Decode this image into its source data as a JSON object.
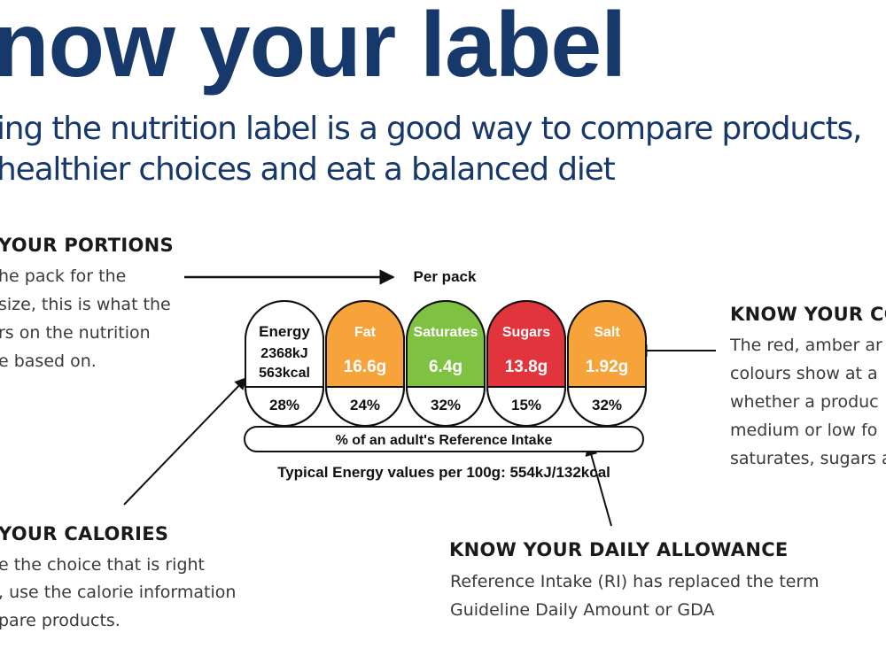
{
  "title": "now your label",
  "subtitle_lines": [
    "ing the nutrition label is a good way to compare products,",
    "healthier choices and eat a balanced diet"
  ],
  "portions": {
    "heading": "YOUR PORTIONS",
    "lines": [
      "he pack for the",
      " size, this is what the",
      "rs on the nutrition",
      "e based on."
    ]
  },
  "calories": {
    "heading": "YOUR CALORIES",
    "lines": [
      "e the choice that is right",
      ", use the calorie information",
      "pare products."
    ]
  },
  "colours": {
    "heading": "KNOW YOUR CO",
    "lines": [
      "The red, amber ar",
      "colours show at a",
      "whether a produc",
      "medium or low fo",
      "saturates, sugars a"
    ]
  },
  "allowance": {
    "heading": "KNOW YOUR DAILY ALLOWANCE",
    "lines": [
      "Reference Intake (RI) has replaced the term",
      "Guideline Daily Amount or GDA"
    ]
  },
  "label": {
    "per_pack": "Per pack",
    "cells": [
      {
        "name": "Energy",
        "lines": [
          "2368kJ",
          "563kcal"
        ],
        "percent": "28%",
        "color": "#ffffff"
      },
      {
        "name": "Fat",
        "lines": [
          "16.6g"
        ],
        "percent": "24%",
        "color": "#f6a33b"
      },
      {
        "name": "Saturates",
        "lines": [
          "6.4g"
        ],
        "percent": "32%",
        "color": "#7fc241"
      },
      {
        "name": "Sugars",
        "lines": [
          "13.8g"
        ],
        "percent": "15%",
        "color": "#e2343d"
      },
      {
        "name": "Salt",
        "lines": [
          "1.92g"
        ],
        "percent": "32%",
        "color": "#f6a33b"
      }
    ],
    "ri_label": "% of an adult's Reference Intake",
    "typical": "Typical Energy values per 100g: 554kJ/132kcal"
  }
}
